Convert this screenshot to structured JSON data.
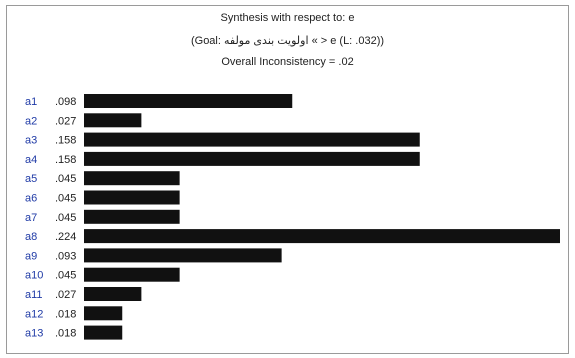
{
  "header": {
    "synthesis": "Synthesis with respect to: e",
    "goal": "(Goal: اولویت بندی مولفه « > e (L: .032))",
    "inconsistency": "Overall Inconsistency = .02"
  },
  "chart_data": {
    "type": "bar",
    "orientation": "horizontal",
    "categories": [
      "a1",
      "a2",
      "a3",
      "a4",
      "a5",
      "a6",
      "a7",
      "a8",
      "a9",
      "a10",
      "a11",
      "a12",
      "a13"
    ],
    "value_labels": [
      ".098",
      ".027",
      ".158",
      ".158",
      ".045",
      ".045",
      ".045",
      ".224",
      ".093",
      ".045",
      ".027",
      ".018",
      ".018"
    ],
    "values": [
      0.098,
      0.027,
      0.158,
      0.158,
      0.045,
      0.045,
      0.045,
      0.224,
      0.093,
      0.045,
      0.027,
      0.018,
      0.018
    ],
    "xlim": [
      0,
      0.224
    ],
    "colors": {
      "bar": "#111111",
      "category": "#1f3aa6",
      "value": "#222222"
    }
  }
}
